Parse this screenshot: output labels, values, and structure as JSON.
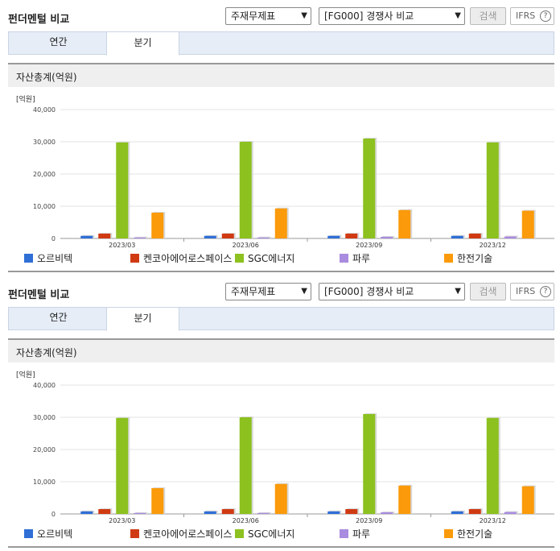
{
  "panels": [
    {
      "title": "펀더멘털 비교",
      "select_a": "주재무제표",
      "select_b": "[FG000] 경쟁사 비교",
      "search_label": "검색",
      "ifrs_label": "IFRS",
      "ifrs_help": "?",
      "tabs": [
        "연간",
        "분기"
      ],
      "chart_title": "자산총계(억원)"
    },
    {
      "title": "펀더멘털 비교",
      "select_a": "주재무제표",
      "select_b": "[FG000] 경쟁사 비교",
      "search_label": "검색",
      "ifrs_label": "IFRS",
      "ifrs_help": "?",
      "tabs": [
        "연간",
        "분기"
      ],
      "chart_title": "자산총계(억원)"
    }
  ],
  "chart_data": [
    {
      "type": "bar",
      "unit_label": "[억원]",
      "categories": [
        "2023/03",
        "2023/06",
        "2023/09",
        "2023/12"
      ],
      "ylim": [
        0,
        40000
      ],
      "yticks": [
        "0",
        "10,000",
        "20,000",
        "30,000",
        "40,000"
      ],
      "grid": true,
      "legend_position": "bottom",
      "series": [
        {
          "name": "오르비텍",
          "color": "#2f6fd6",
          "values": [
            800,
            800,
            800,
            800
          ]
        },
        {
          "name": "켄코아에어로스페이스",
          "color": "#d03a13",
          "values": [
            1500,
            1500,
            1500,
            1500
          ]
        },
        {
          "name": "SGC에너지",
          "color": "#8cc11f",
          "values": [
            29800,
            30000,
            31000,
            29800
          ]
        },
        {
          "name": "파루",
          "color": "#a98be0",
          "values": [
            300,
            300,
            500,
            600
          ]
        },
        {
          "name": "한전기술",
          "color": "#fb9a0a",
          "values": [
            8000,
            9300,
            8800,
            8600
          ]
        }
      ]
    },
    {
      "type": "bar",
      "unit_label": "[억원]",
      "categories": [
        "2023/03",
        "2023/06",
        "2023/09",
        "2023/12"
      ],
      "ylim": [
        0,
        40000
      ],
      "yticks": [
        "0",
        "10,000",
        "20,000",
        "30,000",
        "40,000"
      ],
      "grid": true,
      "legend_position": "bottom",
      "series": [
        {
          "name": "오르비텍",
          "color": "#2f6fd6",
          "values": [
            800,
            800,
            800,
            800
          ]
        },
        {
          "name": "켄코아에어로스페이스",
          "color": "#d03a13",
          "values": [
            1500,
            1500,
            1500,
            1500
          ]
        },
        {
          "name": "SGC에너지",
          "color": "#8cc11f",
          "values": [
            29800,
            30000,
            31000,
            29800
          ]
        },
        {
          "name": "파루",
          "color": "#a98be0",
          "values": [
            300,
            300,
            500,
            600
          ]
        },
        {
          "name": "한전기술",
          "color": "#fb9a0a",
          "values": [
            8000,
            9300,
            8800,
            8600
          ]
        }
      ]
    }
  ]
}
